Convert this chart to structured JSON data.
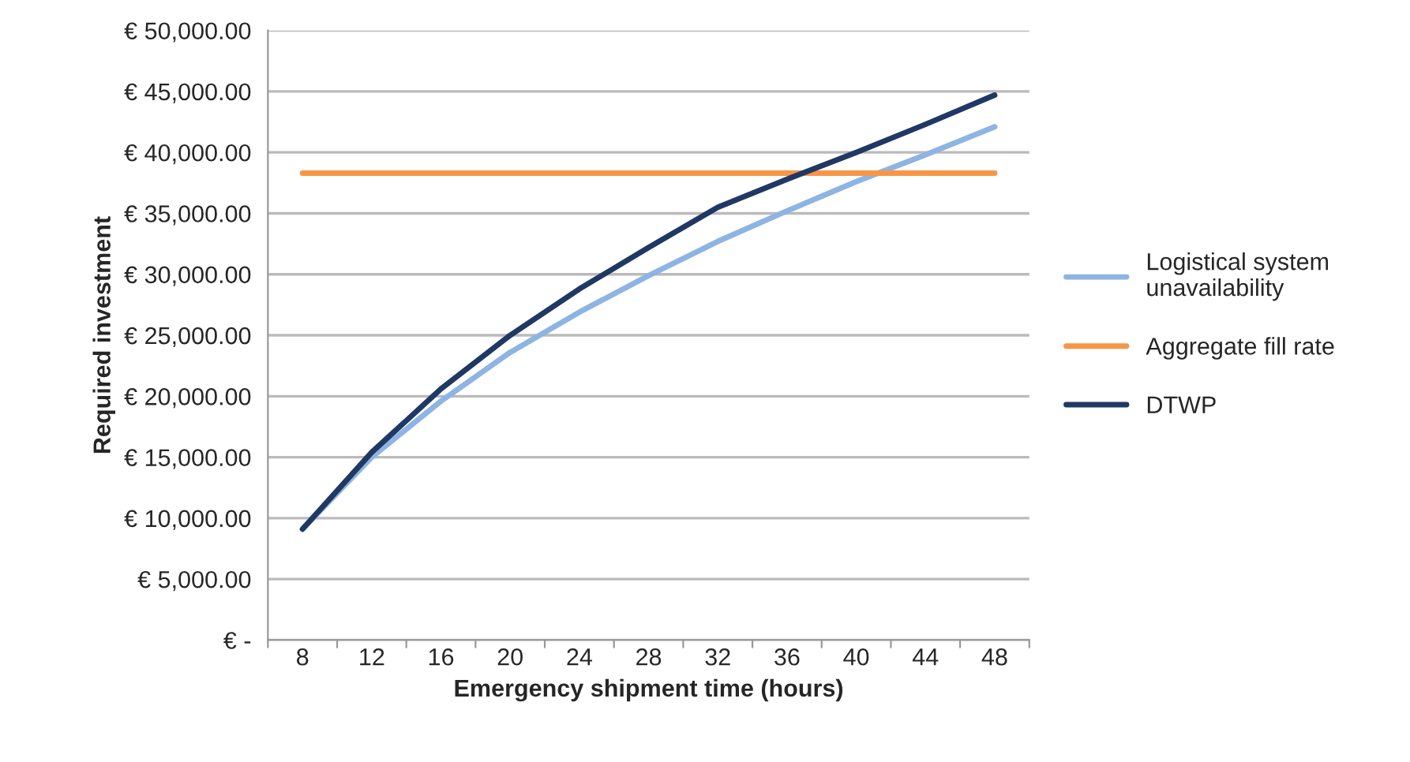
{
  "chart_data": {
    "type": "line",
    "xlabel": "Emergency shipment time (hours)",
    "ylabel": "Required investment",
    "categories": [
      "8",
      "12",
      "16",
      "20",
      "24",
      "28",
      "32",
      "36",
      "40",
      "44",
      "48"
    ],
    "series": [
      {
        "name": "Logistical system unavailability",
        "color": "#8db4e2",
        "values": [
          9100,
          15000,
          19600,
          23600,
          26900,
          29900,
          32700,
          35200,
          37600,
          39800,
          42100
        ]
      },
      {
        "name": "Aggregate fill rate",
        "color": "#f79646",
        "values": [
          38300,
          38300,
          38300,
          38300,
          38300,
          38300,
          38300,
          38300,
          38300,
          38300,
          38300
        ]
      },
      {
        "name": "DTWP",
        "color": "#1f3864",
        "values": [
          9100,
          15400,
          20600,
          25000,
          28800,
          32200,
          35500,
          37800,
          40000,
          42300,
          44700
        ]
      }
    ],
    "ylim": [
      0,
      50000
    ],
    "yticks": [
      {
        "value": 0,
        "label": "€ -"
      },
      {
        "value": 5000,
        "label": "€ 5,000.00"
      },
      {
        "value": 10000,
        "label": "€ 10,000.00"
      },
      {
        "value": 15000,
        "label": "€ 15,000.00"
      },
      {
        "value": 20000,
        "label": "€ 20,000.00"
      },
      {
        "value": 25000,
        "label": "€ 25,000.00"
      },
      {
        "value": 30000,
        "label": "€ 30,000.00"
      },
      {
        "value": 35000,
        "label": "€ 35,000.00"
      },
      {
        "value": 40000,
        "label": "€ 40,000.00"
      },
      {
        "value": 45000,
        "label": "€ 45,000.00"
      },
      {
        "value": 50000,
        "label": "€ 50,000.00"
      }
    ],
    "grid": "y",
    "legend": "right",
    "marker": "none",
    "line_style": "solid"
  }
}
